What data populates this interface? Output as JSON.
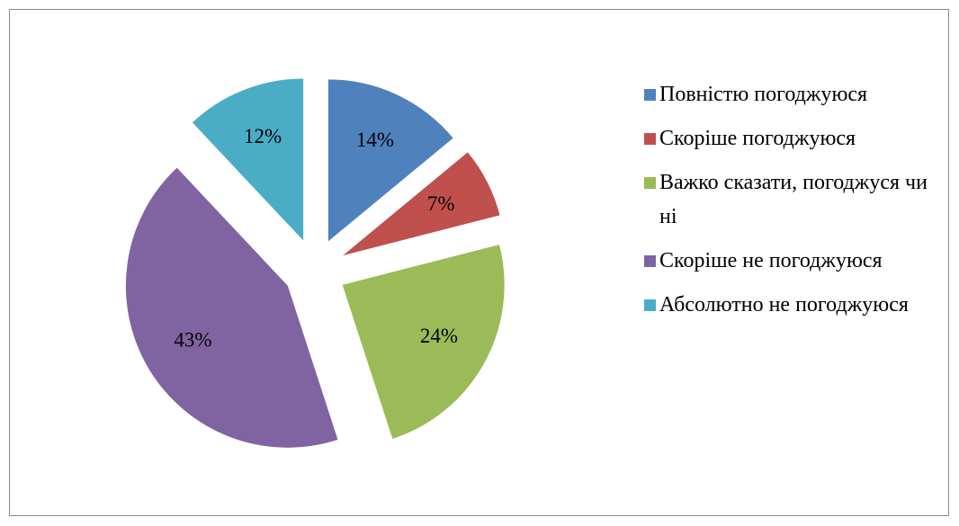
{
  "chart_data": {
    "type": "pie",
    "categories": [
      "Повністю погоджуюся",
      "Скоріше погоджуюся",
      "Важко сказати, погоджуся чи ні",
      "Скоріше не погоджуюся",
      "Абсолютно не погоджуюся"
    ],
    "values": [
      14,
      7,
      24,
      43,
      12
    ],
    "value_labels": [
      "14%",
      "7%",
      "24%",
      "43%",
      "12%"
    ],
    "colors": [
      "#4f81bd",
      "#c0504d",
      "#9bbb59",
      "#8064a2",
      "#4bacc6"
    ],
    "legend": "right"
  }
}
